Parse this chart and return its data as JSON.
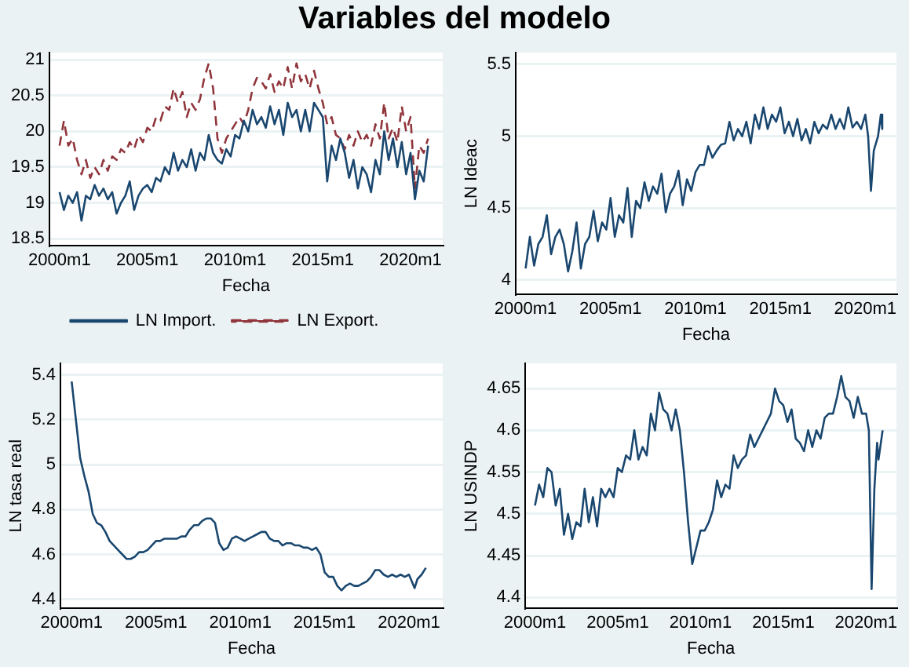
{
  "chart_data": [
    {
      "type": "line",
      "title": "Variables del modelo",
      "xlabel": "Fecha",
      "grid": "y",
      "legend": "bottom",
      "marker": "none",
      "x": [
        "2000-01",
        "2000-04",
        "2000-07",
        "2000-10",
        "2001-01",
        "2001-04",
        "2001-07",
        "2001-10",
        "2002-01",
        "2002-04",
        "2002-07",
        "2002-10",
        "2003-01",
        "2003-04",
        "2003-07",
        "2003-10",
        "2004-01",
        "2004-04",
        "2004-07",
        "2004-10",
        "2005-01",
        "2005-04",
        "2005-07",
        "2005-10",
        "2006-01",
        "2006-04",
        "2006-07",
        "2006-10",
        "2007-01",
        "2007-04",
        "2007-07",
        "2007-10",
        "2008-01",
        "2008-04",
        "2008-07",
        "2008-10",
        "2009-01",
        "2009-04",
        "2009-07",
        "2009-10",
        "2010-01",
        "2010-04",
        "2010-07",
        "2010-10",
        "2011-01",
        "2011-04",
        "2011-07",
        "2011-10",
        "2012-01",
        "2012-04",
        "2012-07",
        "2012-10",
        "2013-01",
        "2013-04",
        "2013-07",
        "2013-10",
        "2014-01",
        "2014-04",
        "2014-07",
        "2014-10",
        "2015-01",
        "2015-04",
        "2015-07",
        "2015-10",
        "2016-01",
        "2016-04",
        "2016-07",
        "2016-10",
        "2017-01",
        "2017-04",
        "2017-07",
        "2017-10",
        "2018-01",
        "2018-04",
        "2018-07",
        "2018-10",
        "2019-01",
        "2019-04",
        "2019-07",
        "2019-10",
        "2020-01",
        "2020-04",
        "2020-07",
        "2020-10",
        "2021-01"
      ],
      "xlim": [
        "1999-06",
        "2021-11"
      ],
      "xticks": [
        {
          "value": "2000-01",
          "label": "2000m1"
        },
        {
          "value": "2005-01",
          "label": "2005m1"
        },
        {
          "value": "2010-01",
          "label": "2010m1"
        },
        {
          "value": "2015-01",
          "label": "2015m1"
        },
        {
          "value": "2020-01",
          "label": "2020m1"
        }
      ],
      "ylim": [
        18.4,
        21.1
      ],
      "yticks": [
        18.5,
        19,
        19.5,
        20,
        20.5,
        21
      ],
      "series": [
        {
          "name": "LN Import.",
          "color": "#1a476f",
          "line_style": "solid",
          "values": [
            19.15,
            18.9,
            19.1,
            19.0,
            19.15,
            18.75,
            19.1,
            19.05,
            19.25,
            19.1,
            19.2,
            19.05,
            19.15,
            18.85,
            19.0,
            19.1,
            19.3,
            18.9,
            19.1,
            19.2,
            19.25,
            19.15,
            19.35,
            19.3,
            19.5,
            19.4,
            19.7,
            19.45,
            19.6,
            19.5,
            19.75,
            19.45,
            19.7,
            19.6,
            19.95,
            19.7,
            19.6,
            19.55,
            19.75,
            19.65,
            19.95,
            19.9,
            20.15,
            20.0,
            20.3,
            20.1,
            20.2,
            20.05,
            20.35,
            20.1,
            20.3,
            19.95,
            20.4,
            20.2,
            20.3,
            20.0,
            20.3,
            20.0,
            20.4,
            20.3,
            20.2,
            19.3,
            19.8,
            19.6,
            19.9,
            19.7,
            19.35,
            19.6,
            19.2,
            19.5,
            19.4,
            19.15,
            19.6,
            19.4,
            20.0,
            19.6,
            19.9,
            19.5,
            19.85,
            19.4,
            19.7,
            19.05,
            19.45,
            19.3,
            19.8
          ]
        },
        {
          "name": "LN Export.",
          "color": "#90353b",
          "line_style": "dashed",
          "values": [
            19.8,
            20.15,
            19.8,
            19.9,
            19.6,
            19.4,
            19.6,
            19.35,
            19.5,
            19.4,
            19.6,
            19.45,
            19.65,
            19.6,
            19.75,
            19.7,
            19.85,
            19.75,
            19.95,
            19.85,
            20.05,
            20.0,
            20.2,
            20.15,
            20.35,
            20.3,
            20.6,
            20.4,
            20.55,
            20.2,
            20.4,
            20.3,
            20.45,
            20.75,
            20.95,
            20.6,
            19.9,
            19.7,
            19.9,
            20.0,
            20.1,
            20.2,
            20.1,
            20.3,
            20.6,
            20.75,
            20.7,
            20.6,
            20.8,
            20.55,
            20.7,
            20.6,
            20.9,
            20.6,
            20.95,
            20.7,
            20.8,
            20.6,
            20.85,
            20.6,
            20.4,
            20.1,
            20.2,
            19.95,
            19.9,
            19.75,
            19.95,
            19.8,
            20.0,
            19.85,
            19.95,
            19.8,
            20.1,
            19.9,
            20.4,
            19.9,
            20.05,
            19.85,
            20.35,
            20.0,
            20.2,
            19.2,
            19.8,
            19.7,
            19.9
          ]
        }
      ]
    },
    {
      "type": "line",
      "xlabel": "Fecha",
      "ylabel": "LN Ideac",
      "grid": "y",
      "marker": "none",
      "x": [
        "2000-01",
        "2000-04",
        "2000-07",
        "2000-10",
        "2001-01",
        "2001-04",
        "2001-07",
        "2001-10",
        "2002-01",
        "2002-04",
        "2002-07",
        "2002-10",
        "2003-01",
        "2003-04",
        "2003-07",
        "2003-10",
        "2004-01",
        "2004-04",
        "2004-07",
        "2004-10",
        "2005-01",
        "2005-04",
        "2005-07",
        "2005-10",
        "2006-01",
        "2006-04",
        "2006-07",
        "2006-10",
        "2007-01",
        "2007-04",
        "2007-07",
        "2007-10",
        "2008-01",
        "2008-04",
        "2008-07",
        "2008-10",
        "2009-01",
        "2009-04",
        "2009-07",
        "2009-10",
        "2010-01",
        "2010-04",
        "2010-07",
        "2010-10",
        "2011-01",
        "2011-04",
        "2011-07",
        "2011-10",
        "2012-01",
        "2012-04",
        "2012-07",
        "2012-10",
        "2013-01",
        "2013-04",
        "2013-07",
        "2013-10",
        "2014-01",
        "2014-04",
        "2014-07",
        "2014-10",
        "2015-01",
        "2015-04",
        "2015-07",
        "2015-10",
        "2016-01",
        "2016-04",
        "2016-07",
        "2016-10",
        "2017-01",
        "2017-04",
        "2017-07",
        "2017-10",
        "2018-01",
        "2018-04",
        "2018-07",
        "2018-10",
        "2019-01",
        "2019-04",
        "2019-07",
        "2019-10",
        "2020-01",
        "2020-03",
        "2020-05",
        "2020-07",
        "2020-10",
        "2020-12",
        "2021-01"
      ],
      "xlim": [
        "1999-06",
        "2021-11"
      ],
      "xticks": [
        {
          "value": "2000-01",
          "label": "2000m1"
        },
        {
          "value": "2005-01",
          "label": "2005m1"
        },
        {
          "value": "2010-01",
          "label": "2010m1"
        },
        {
          "value": "2015-01",
          "label": "2015m1"
        },
        {
          "value": "2020-01",
          "label": "2020m1"
        }
      ],
      "ylim": [
        3.9,
        5.58
      ],
      "yticks": [
        4,
        4.5,
        5,
        5.5
      ],
      "series": [
        {
          "color": "#1a476f",
          "values": [
            4.08,
            4.3,
            4.1,
            4.25,
            4.3,
            4.45,
            4.18,
            4.3,
            4.35,
            4.25,
            4.06,
            4.2,
            4.4,
            4.08,
            4.25,
            4.3,
            4.48,
            4.27,
            4.4,
            4.35,
            4.57,
            4.3,
            4.45,
            4.4,
            4.64,
            4.3,
            4.55,
            4.5,
            4.68,
            4.55,
            4.65,
            4.6,
            4.74,
            4.47,
            4.6,
            4.65,
            4.76,
            4.52,
            4.7,
            4.62,
            4.75,
            4.8,
            4.8,
            4.93,
            4.85,
            4.9,
            4.94,
            4.95,
            5.1,
            4.97,
            5.05,
            5.0,
            5.1,
            4.95,
            5.15,
            5.05,
            5.2,
            5.05,
            5.15,
            5.1,
            5.2,
            5.02,
            5.1,
            5.0,
            5.12,
            4.97,
            5.05,
            4.95,
            5.1,
            5.02,
            5.08,
            5.05,
            5.15,
            5.05,
            5.12,
            5.05,
            5.2,
            5.06,
            5.1,
            5.05,
            5.15,
            5.0,
            4.62,
            4.9,
            5.0,
            5.15,
            5.05
          ]
        }
      ]
    },
    {
      "type": "line",
      "xlabel": "Fecha",
      "ylabel": "LN tasa real",
      "grid": "y",
      "marker": "none",
      "x": [
        "2000-01",
        "2000-04",
        "2000-07",
        "2000-10",
        "2001-01",
        "2001-04",
        "2001-07",
        "2001-10",
        "2002-01",
        "2002-04",
        "2002-07",
        "2002-10",
        "2003-01",
        "2003-04",
        "2003-07",
        "2003-10",
        "2004-01",
        "2004-04",
        "2004-07",
        "2004-10",
        "2005-01",
        "2005-04",
        "2005-07",
        "2005-10",
        "2006-01",
        "2006-04",
        "2006-07",
        "2006-10",
        "2007-01",
        "2007-04",
        "2007-07",
        "2007-10",
        "2008-01",
        "2008-04",
        "2008-07",
        "2008-10",
        "2009-01",
        "2009-04",
        "2009-07",
        "2009-10",
        "2010-01",
        "2010-04",
        "2010-07",
        "2010-10",
        "2011-01",
        "2011-04",
        "2011-07",
        "2011-10",
        "2012-01",
        "2012-04",
        "2012-07",
        "2012-10",
        "2013-01",
        "2013-04",
        "2013-07",
        "2013-10",
        "2014-01",
        "2014-04",
        "2014-07",
        "2014-10",
        "2015-01",
        "2015-04",
        "2015-07",
        "2015-10",
        "2016-01",
        "2016-04",
        "2016-07",
        "2016-10",
        "2017-01",
        "2017-04",
        "2017-07",
        "2017-10",
        "2018-01",
        "2018-04",
        "2018-07",
        "2018-10",
        "2019-01",
        "2019-04",
        "2019-07",
        "2019-10",
        "2020-01",
        "2020-05",
        "2020-07",
        "2020-10",
        "2021-01"
      ],
      "xlim": [
        "1999-05",
        "2022-01"
      ],
      "xticks": [
        {
          "value": "2000-01",
          "label": "2000m1"
        },
        {
          "value": "2005-01",
          "label": "2005m1"
        },
        {
          "value": "2010-01",
          "label": "2010m1"
        },
        {
          "value": "2015-01",
          "label": "2015m1"
        },
        {
          "value": "2020-01",
          "label": "2020m1"
        }
      ],
      "ylim": [
        4.36,
        5.45
      ],
      "yticks": [
        4.4,
        4.6,
        4.8,
        5,
        5.2,
        5.4
      ],
      "series": [
        {
          "color": "#1a476f",
          "values": [
            5.37,
            5.2,
            5.03,
            4.95,
            4.88,
            4.78,
            4.74,
            4.73,
            4.7,
            4.66,
            4.64,
            4.62,
            4.6,
            4.58,
            4.58,
            4.59,
            4.61,
            4.61,
            4.62,
            4.64,
            4.66,
            4.66,
            4.67,
            4.67,
            4.67,
            4.67,
            4.68,
            4.68,
            4.71,
            4.73,
            4.73,
            4.75,
            4.76,
            4.76,
            4.74,
            4.65,
            4.62,
            4.63,
            4.67,
            4.68,
            4.67,
            4.66,
            4.67,
            4.68,
            4.69,
            4.7,
            4.7,
            4.67,
            4.66,
            4.66,
            4.64,
            4.65,
            4.65,
            4.64,
            4.64,
            4.63,
            4.63,
            4.62,
            4.63,
            4.6,
            4.52,
            4.5,
            4.5,
            4.46,
            4.44,
            4.46,
            4.47,
            4.46,
            4.46,
            4.47,
            4.48,
            4.5,
            4.53,
            4.53,
            4.51,
            4.5,
            4.51,
            4.5,
            4.51,
            4.5,
            4.51,
            4.45,
            4.49,
            4.51,
            4.54
          ]
        }
      ]
    },
    {
      "type": "line",
      "xlabel": "Fecha",
      "ylabel": "LN USINDP",
      "grid": "y",
      "marker": "none",
      "x": [
        "2000-01",
        "2000-04",
        "2000-07",
        "2000-10",
        "2001-01",
        "2001-04",
        "2001-07",
        "2001-10",
        "2002-01",
        "2002-04",
        "2002-07",
        "2002-10",
        "2003-01",
        "2003-04",
        "2003-07",
        "2003-10",
        "2004-01",
        "2004-04",
        "2004-07",
        "2004-10",
        "2005-01",
        "2005-04",
        "2005-07",
        "2005-10",
        "2006-01",
        "2006-04",
        "2006-07",
        "2006-10",
        "2007-01",
        "2007-04",
        "2007-07",
        "2007-10",
        "2008-01",
        "2008-04",
        "2008-07",
        "2008-10",
        "2009-01",
        "2009-04",
        "2009-07",
        "2009-10",
        "2010-01",
        "2010-04",
        "2010-07",
        "2010-10",
        "2011-01",
        "2011-04",
        "2011-07",
        "2011-10",
        "2012-01",
        "2012-04",
        "2012-07",
        "2012-10",
        "2013-01",
        "2013-04",
        "2013-07",
        "2013-10",
        "2014-01",
        "2014-04",
        "2014-07",
        "2014-10",
        "2015-01",
        "2015-04",
        "2015-07",
        "2015-10",
        "2016-01",
        "2016-04",
        "2016-07",
        "2016-10",
        "2017-01",
        "2017-04",
        "2017-07",
        "2017-10",
        "2018-01",
        "2018-04",
        "2018-07",
        "2018-10",
        "2019-01",
        "2019-04",
        "2019-07",
        "2019-10",
        "2020-01",
        "2020-03",
        "2020-05",
        "2020-07",
        "2020-09",
        "2020-10",
        "2021-01"
      ],
      "xlim": [
        "1999-06",
        "2021-11"
      ],
      "xticks": [
        {
          "value": "2000-01",
          "label": "2000m1"
        },
        {
          "value": "2005-01",
          "label": "2005m1"
        },
        {
          "value": "2010-01",
          "label": "2010m1"
        },
        {
          "value": "2015-01",
          "label": "2015m1"
        },
        {
          "value": "2020-01",
          "label": "2020m1"
        }
      ],
      "ylim": [
        4.387,
        4.68
      ],
      "yticks": [
        4.4,
        4.45,
        4.5,
        4.55,
        4.6,
        4.65
      ],
      "series": [
        {
          "color": "#1a476f",
          "values": [
            4.51,
            4.535,
            4.52,
            4.555,
            4.55,
            4.51,
            4.53,
            4.475,
            4.5,
            4.47,
            4.49,
            4.485,
            4.53,
            4.49,
            4.52,
            4.485,
            4.53,
            4.52,
            4.53,
            4.52,
            4.555,
            4.55,
            4.57,
            4.565,
            4.6,
            4.565,
            4.58,
            4.57,
            4.62,
            4.6,
            4.645,
            4.625,
            4.62,
            4.6,
            4.625,
            4.6,
            4.55,
            4.49,
            4.44,
            4.46,
            4.48,
            4.48,
            4.49,
            4.505,
            4.54,
            4.52,
            4.535,
            4.53,
            4.57,
            4.555,
            4.565,
            4.57,
            4.595,
            4.58,
            4.59,
            4.6,
            4.61,
            4.62,
            4.65,
            4.635,
            4.63,
            4.61,
            4.625,
            4.59,
            4.585,
            4.575,
            4.6,
            4.58,
            4.6,
            4.59,
            4.615,
            4.62,
            4.62,
            4.64,
            4.665,
            4.64,
            4.635,
            4.615,
            4.64,
            4.62,
            4.62,
            4.6,
            4.41,
            4.53,
            4.585,
            4.565,
            4.6
          ]
        }
      ]
    }
  ]
}
